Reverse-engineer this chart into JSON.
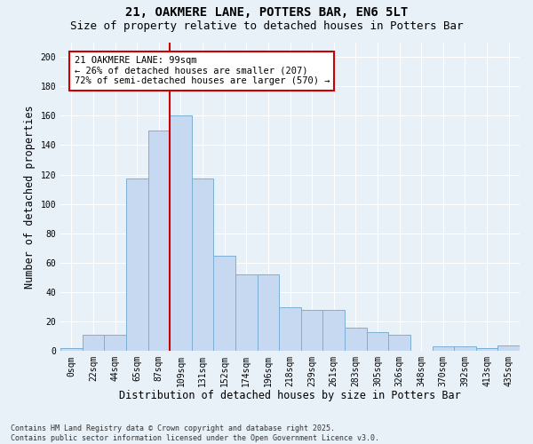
{
  "title_line1": "21, OAKMERE LANE, POTTERS BAR, EN6 5LT",
  "title_line2": "Size of property relative to detached houses in Potters Bar",
  "xlabel": "Distribution of detached houses by size in Potters Bar",
  "ylabel": "Number of detached properties",
  "footnote": "Contains HM Land Registry data © Crown copyright and database right 2025.\nContains public sector information licensed under the Open Government Licence v3.0.",
  "bin_labels": [
    "0sqm",
    "22sqm",
    "44sqm",
    "65sqm",
    "87sqm",
    "109sqm",
    "131sqm",
    "152sqm",
    "174sqm",
    "196sqm",
    "218sqm",
    "239sqm",
    "261sqm",
    "283sqm",
    "305sqm",
    "326sqm",
    "348sqm",
    "370sqm",
    "392sqm",
    "413sqm",
    "435sqm"
  ],
  "bar_heights": [
    2,
    11,
    11,
    117,
    150,
    160,
    117,
    65,
    52,
    52,
    30,
    28,
    28,
    16,
    13,
    11,
    0,
    3,
    3,
    2,
    4
  ],
  "bar_color": "#C6D9F0",
  "bar_edge_color": "#7BAFD4",
  "vline_index": 4,
  "vline_color": "#CC0000",
  "annotation_text": "21 OAKMERE LANE: 99sqm\n← 26% of detached houses are smaller (207)\n72% of semi-detached houses are larger (570) →",
  "annotation_box_color": "white",
  "annotation_box_edge_color": "#CC0000",
  "ylim": [
    0,
    210
  ],
  "yticks": [
    0,
    20,
    40,
    60,
    80,
    100,
    120,
    140,
    160,
    180,
    200
  ],
  "bg_color": "#E8F0F8",
  "grid_color": "white",
  "title_fontsize": 10,
  "subtitle_fontsize": 9,
  "axis_label_fontsize": 8.5,
  "tick_fontsize": 7,
  "annotation_fontsize": 7.5,
  "footnote_fontsize": 6
}
